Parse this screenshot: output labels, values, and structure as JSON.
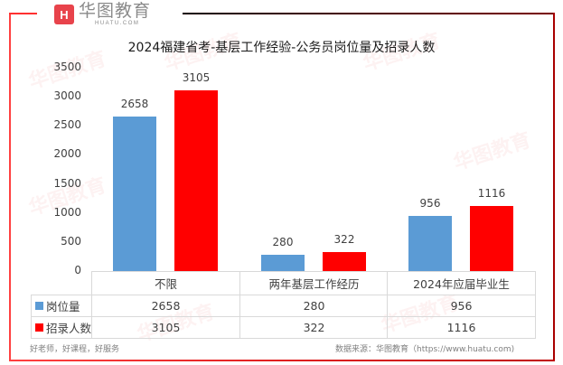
{
  "brand": {
    "logo_mark": "H",
    "name_cn": "华图教育",
    "name_en": "HUATU.COM"
  },
  "colors": {
    "series_1": "#5b9bd5",
    "series_2": "#ff0000",
    "frame_left": "#ff4040",
    "frame_right": "#a80000"
  },
  "chart_data": {
    "type": "bar",
    "title": "2024福建省考-基层工作经验-公务员岗位量及招录人数",
    "categories": [
      "不限",
      "两年基层工作经历",
      "2024年应届毕业生"
    ],
    "series": [
      {
        "name": "岗位量",
        "color": "#5b9bd5",
        "values": [
          2658,
          280,
          956
        ]
      },
      {
        "name": "招录人数",
        "color": "#ff0000",
        "values": [
          3105,
          322,
          1116
        ]
      }
    ],
    "xlabel": "",
    "ylabel": "",
    "ylim": [
      0,
      3500
    ],
    "yticks": [
      "0",
      "500",
      "1000",
      "1500",
      "2000",
      "2500",
      "3000",
      "3500"
    ],
    "grid": false,
    "legend_position": "data-table"
  },
  "labels": {
    "blue": [
      "2658",
      "280",
      "956"
    ],
    "red": [
      "3105",
      "322",
      "1116"
    ]
  },
  "table": {
    "headers": [
      "不限",
      "两年基层工作经历",
      "2024年应届毕业生"
    ],
    "rows": [
      {
        "label": "岗位量",
        "values": [
          "2658",
          "280",
          "956"
        ]
      },
      {
        "label": "招录人数",
        "values": [
          "3105",
          "322",
          "1116"
        ]
      }
    ]
  },
  "footer": {
    "slogan": "好老师，好课程，好服务",
    "source": "数据来源：华图教育（https://www.huatu.com)"
  }
}
